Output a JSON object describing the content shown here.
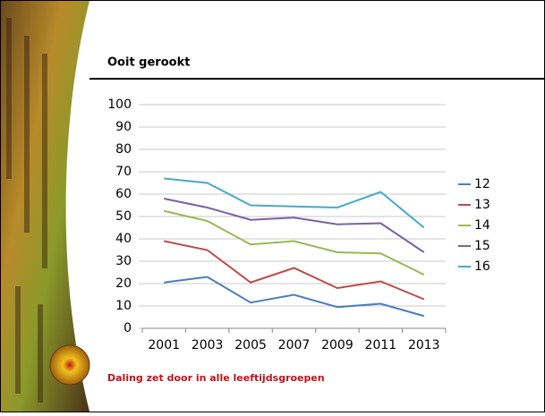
{
  "chart_data": {
    "type": "line",
    "title": "Ooit gerookt",
    "categories": [
      "2001",
      "2003",
      "2005",
      "2007",
      "2009",
      "2011",
      "2013"
    ],
    "series": [
      {
        "name": "12",
        "color": "#4a7ebb",
        "values": [
          20.5,
          23,
          11.5,
          15,
          9.5,
          11,
          5.5
        ]
      },
      {
        "name": "13",
        "color": "#be4b48",
        "values": [
          39,
          35,
          20.5,
          27,
          18,
          21,
          13
        ]
      },
      {
        "name": "14",
        "color": "#98b954",
        "values": [
          52.5,
          48,
          37.5,
          39,
          34,
          33.5,
          24
        ]
      },
      {
        "name": "15",
        "color": "#7d60a0",
        "values": [
          58,
          54,
          48.5,
          49.5,
          46.5,
          47,
          34
        ]
      },
      {
        "name": "16",
        "color": "#46aac5",
        "values": [
          67,
          65,
          55,
          54.5,
          54,
          61,
          45
        ]
      }
    ],
    "ylim": [
      0,
      100
    ],
    "yticks": [
      0,
      10,
      20,
      30,
      40,
      50,
      60,
      70,
      80,
      90,
      100
    ],
    "grid": true,
    "legend": "right"
  },
  "footer": "Daling zet door in alle leeftijdsgroepen"
}
